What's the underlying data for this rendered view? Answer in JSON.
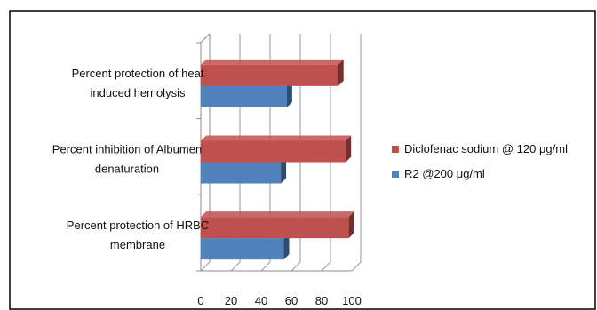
{
  "chart_data": {
    "type": "bar",
    "orientation": "horizontal",
    "categories": [
      "Percent protection of HRBC membrane",
      "Percent inhibition of Albumen denaturation",
      "Percent protection of heat induced hemolysis"
    ],
    "category_label_lines": [
      [
        "Percent protection of HRBC",
        "membrane"
      ],
      [
        "Percent inhibition of Albumen",
        "denaturation"
      ],
      [
        "Percent protection of heat",
        "induced hemolysis"
      ]
    ],
    "series": [
      {
        "name": "R2 @200 μg/ml",
        "values": [
          55,
          53,
          57
        ],
        "color": "#4f81bd"
      },
      {
        "name": "Diclofenac sodium @ 120 μg/ml",
        "values": [
          98,
          96,
          91
        ],
        "color": "#c0504d"
      }
    ],
    "xlim": [
      0,
      100
    ],
    "xticks": [
      0,
      20,
      40,
      60,
      80,
      100
    ],
    "grid": true,
    "three_d": true,
    "legend_position": "right",
    "legend_order": [
      "Diclofenac sodium @ 120 μg/ml",
      "R2 @200 μg/ml"
    ]
  }
}
